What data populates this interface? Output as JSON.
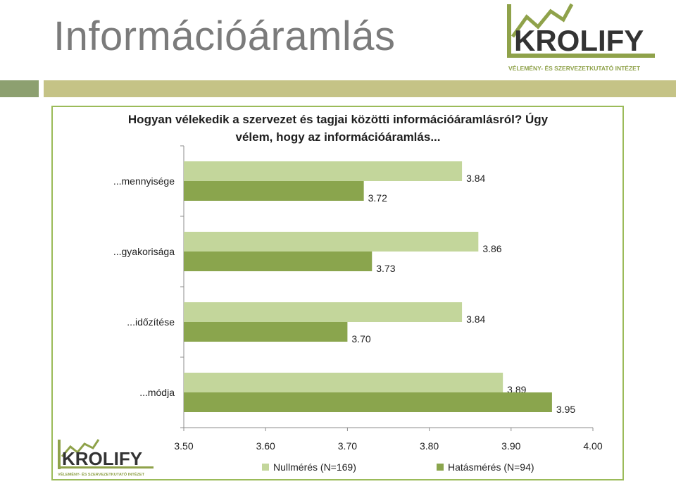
{
  "page": {
    "title": "Információáramlás"
  },
  "logo": {
    "brand": "KROLIFY",
    "tagline": "VÉLEMÉNY- ÉS SZERVEZETKUTATÓ INTÉZET"
  },
  "colors": {
    "series1": "#c3d69b",
    "series2": "#8aa54d",
    "frame": "#9bbb59",
    "title_gray": "#7b7b7b",
    "logo_green": "#8fa24a",
    "logo_dark": "#333333"
  },
  "chart_data": {
    "type": "bar",
    "orientation": "horizontal",
    "title": "Hogyan vélekedik a szervezet és tagjai közötti információáramlásról? Úgy vélem, hogy az információáramlás...",
    "title_lines": [
      "Hogyan vélekedik a szervezet és tagjai közötti információáramlásról? Úgy",
      "vélem, hogy az információáramlás..."
    ],
    "categories": [
      "...mennyisége",
      "...gyakorisága",
      "...időzítése",
      "...módja"
    ],
    "series": [
      {
        "name": "Nullmérés (N=169)",
        "values": [
          3.84,
          3.86,
          3.84,
          3.89
        ],
        "labels": [
          "3.84",
          "3.86",
          "3.84",
          "3.89"
        ]
      },
      {
        "name": "Hatásmérés (N=94)",
        "values": [
          3.72,
          3.73,
          3.7,
          3.95
        ],
        "labels": [
          "3.72",
          "3.73",
          "3.70",
          "3.95"
        ]
      }
    ],
    "xlim": [
      3.5,
      4.0
    ],
    "xticks": [
      "3.50",
      "3.60",
      "3.70",
      "3.80",
      "3.90",
      "4.00"
    ],
    "legend_position": "bottom",
    "grid": false
  }
}
